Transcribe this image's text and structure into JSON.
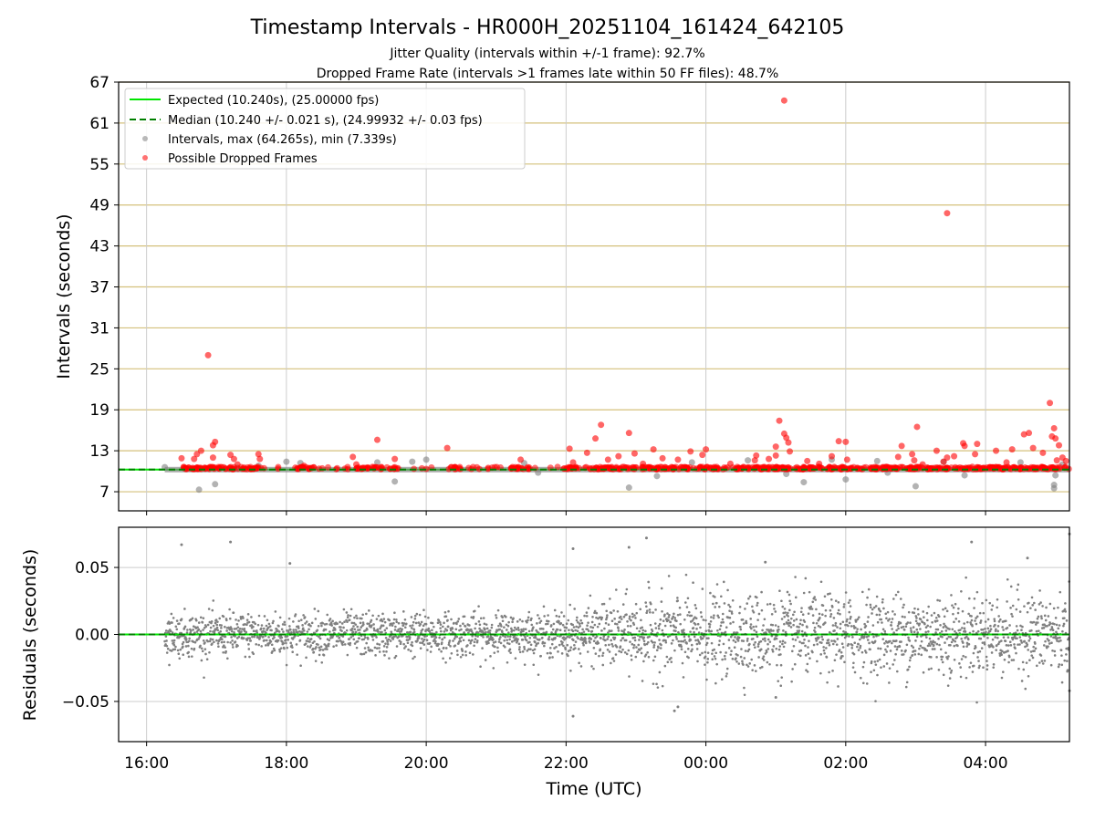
{
  "chart_data": {
    "title": "Timestamp Intervals - HR000H_20251104_161424_642105",
    "subtitle_lines": [
      "Jitter Quality (intervals within +/-1 frame): 92.7%",
      "Dropped Frame Rate (intervals >1 frames late within 50 FF files): 48.7%"
    ],
    "xlabel": "Time (UTC)",
    "x_ticks": [
      "16:00",
      "18:00",
      "20:00",
      "22:00",
      "00:00",
      "02:00",
      "04:00"
    ],
    "x_tick_hours": [
      16,
      18,
      20,
      22,
      24,
      26,
      28
    ],
    "x_range_hours": [
      15.6,
      29.2
    ],
    "data_start_hour": 16.26,
    "data_end_hour": 29.2,
    "colors": {
      "expected": "#00e600",
      "median": "#007f00",
      "intervals": "#808080",
      "dropped": "#ff0000",
      "ygrid": "#d4c07c",
      "xgrid": "#cccccc"
    },
    "top": {
      "type": "scatter",
      "ylabel": "Intervals (seconds)",
      "ylim": [
        4.2,
        67
      ],
      "y_ticks": [
        "7",
        "13",
        "19",
        "25",
        "31",
        "37",
        "43",
        "49",
        "55",
        "61",
        "67"
      ],
      "expected": 10.24,
      "median": 10.24,
      "legend": [
        "Expected (10.240s), (25.00000 fps)",
        "Median (10.240 +/- 0.021 s), (24.99932 +/- 0.03 fps)",
        "Intervals, max (64.265s), min (7.339s)",
        "Possible Dropped Frames"
      ],
      "interval_outliers": [
        {
          "t": 16.26,
          "y": 10.6
        },
        {
          "t": 16.55,
          "y": 10.4
        },
        {
          "t": 16.75,
          "y": 7.3
        },
        {
          "t": 16.98,
          "y": 8.1
        },
        {
          "t": 17.3,
          "y": 10.5
        },
        {
          "t": 17.6,
          "y": 10.8
        },
        {
          "t": 18.0,
          "y": 11.4
        },
        {
          "t": 18.2,
          "y": 11.2
        },
        {
          "t": 19.3,
          "y": 11.3
        },
        {
          "t": 19.55,
          "y": 8.5
        },
        {
          "t": 19.8,
          "y": 11.4
        },
        {
          "t": 20.0,
          "y": 11.7
        },
        {
          "t": 21.4,
          "y": 11.2
        },
        {
          "t": 21.6,
          "y": 9.8
        },
        {
          "t": 22.9,
          "y": 7.6
        },
        {
          "t": 23.3,
          "y": 9.3
        },
        {
          "t": 23.8,
          "y": 11.3
        },
        {
          "t": 24.6,
          "y": 11.6
        },
        {
          "t": 25.15,
          "y": 9.6
        },
        {
          "t": 25.4,
          "y": 8.4
        },
        {
          "t": 25.8,
          "y": 11.7
        },
        {
          "t": 26.0,
          "y": 8.8
        },
        {
          "t": 26.45,
          "y": 11.5
        },
        {
          "t": 26.6,
          "y": 9.8
        },
        {
          "t": 27.0,
          "y": 7.8
        },
        {
          "t": 27.4,
          "y": 11.4
        },
        {
          "t": 27.7,
          "y": 9.4
        },
        {
          "t": 28.5,
          "y": 11.3
        },
        {
          "t": 28.98,
          "y": 7.5
        },
        {
          "t": 28.98,
          "y": 8.0
        },
        {
          "t": 29.0,
          "y": 9.4
        },
        {
          "t": 29.1,
          "y": 11.0
        }
      ],
      "dropped_frames": [
        {
          "t": 16.5,
          "y": 11.9
        },
        {
          "t": 16.68,
          "y": 11.8
        },
        {
          "t": 16.72,
          "y": 12.5
        },
        {
          "t": 16.78,
          "y": 13.0
        },
        {
          "t": 16.88,
          "y": 27.0
        },
        {
          "t": 16.95,
          "y": 13.8
        },
        {
          "t": 16.98,
          "y": 14.3
        },
        {
          "t": 16.95,
          "y": 12.0
        },
        {
          "t": 17.2,
          "y": 12.4
        },
        {
          "t": 17.25,
          "y": 11.8
        },
        {
          "t": 17.3,
          "y": 11.0
        },
        {
          "t": 17.6,
          "y": 12.5
        },
        {
          "t": 17.62,
          "y": 11.8
        },
        {
          "t": 18.25,
          "y": 10.8
        },
        {
          "t": 18.95,
          "y": 12.1
        },
        {
          "t": 19.0,
          "y": 11.0
        },
        {
          "t": 19.3,
          "y": 14.6
        },
        {
          "t": 19.55,
          "y": 11.8
        },
        {
          "t": 20.3,
          "y": 13.4
        },
        {
          "t": 21.35,
          "y": 11.7
        },
        {
          "t": 22.05,
          "y": 13.3
        },
        {
          "t": 22.1,
          "y": 11.3
        },
        {
          "t": 22.3,
          "y": 12.7
        },
        {
          "t": 22.42,
          "y": 14.8
        },
        {
          "t": 22.5,
          "y": 16.8
        },
        {
          "t": 22.6,
          "y": 11.7
        },
        {
          "t": 22.75,
          "y": 12.2
        },
        {
          "t": 22.9,
          "y": 15.6
        },
        {
          "t": 22.98,
          "y": 12.6
        },
        {
          "t": 23.1,
          "y": 11.1
        },
        {
          "t": 23.25,
          "y": 13.2
        },
        {
          "t": 23.38,
          "y": 11.9
        },
        {
          "t": 23.6,
          "y": 11.7
        },
        {
          "t": 23.78,
          "y": 12.9
        },
        {
          "t": 23.95,
          "y": 12.4
        },
        {
          "t": 24.0,
          "y": 13.2
        },
        {
          "t": 24.35,
          "y": 11.1
        },
        {
          "t": 24.7,
          "y": 11.6
        },
        {
          "t": 24.72,
          "y": 12.3
        },
        {
          "t": 24.9,
          "y": 11.8
        },
        {
          "t": 25.0,
          "y": 12.3
        },
        {
          "t": 25.0,
          "y": 13.6
        },
        {
          "t": 25.05,
          "y": 17.4
        },
        {
          "t": 25.12,
          "y": 15.5
        },
        {
          "t": 25.15,
          "y": 14.9
        },
        {
          "t": 25.18,
          "y": 14.2
        },
        {
          "t": 25.2,
          "y": 12.9
        },
        {
          "t": 25.45,
          "y": 11.5
        },
        {
          "t": 25.62,
          "y": 11.1
        },
        {
          "t": 25.8,
          "y": 12.2
        },
        {
          "t": 25.9,
          "y": 14.4
        },
        {
          "t": 26.0,
          "y": 14.3
        },
        {
          "t": 26.02,
          "y": 11.7
        },
        {
          "t": 26.75,
          "y": 12.1
        },
        {
          "t": 26.8,
          "y": 13.7
        },
        {
          "t": 26.95,
          "y": 12.5
        },
        {
          "t": 26.98,
          "y": 11.6
        },
        {
          "t": 27.02,
          "y": 16.5
        },
        {
          "t": 27.1,
          "y": 11.0
        },
        {
          "t": 27.3,
          "y": 13.0
        },
        {
          "t": 27.4,
          "y": 11.4
        },
        {
          "t": 27.45,
          "y": 12.0
        },
        {
          "t": 27.45,
          "y": 47.8
        },
        {
          "t": 27.55,
          "y": 12.2
        },
        {
          "t": 27.68,
          "y": 14.1
        },
        {
          "t": 27.7,
          "y": 13.7
        },
        {
          "t": 27.85,
          "y": 12.5
        },
        {
          "t": 27.88,
          "y": 14.0
        },
        {
          "t": 28.15,
          "y": 13.0
        },
        {
          "t": 28.3,
          "y": 11.3
        },
        {
          "t": 28.38,
          "y": 13.2
        },
        {
          "t": 28.55,
          "y": 15.4
        },
        {
          "t": 28.62,
          "y": 15.6
        },
        {
          "t": 28.68,
          "y": 13.4
        },
        {
          "t": 28.82,
          "y": 12.7
        },
        {
          "t": 28.92,
          "y": 20.0
        },
        {
          "t": 28.95,
          "y": 15.1
        },
        {
          "t": 28.98,
          "y": 16.3
        },
        {
          "t": 29.0,
          "y": 14.8
        },
        {
          "t": 29.02,
          "y": 11.6
        },
        {
          "t": 29.05,
          "y": 13.8
        },
        {
          "t": 29.1,
          "y": 12.0
        },
        {
          "t": 29.15,
          "y": 11.5
        },
        {
          "t": 25.12,
          "y": 64.3
        }
      ]
    },
    "bottom": {
      "type": "scatter",
      "ylabel": "Residuals (seconds)",
      "ylim": [
        -0.08,
        0.08
      ],
      "y_ticks": [
        0.05,
        0.0,
        -0.05
      ],
      "y_tick_labels": [
        "0.05",
        "0.00",
        "−0.05"
      ],
      "zero_line": 0.0,
      "n_points": 3000,
      "std_early": 0.008,
      "std_late": 0.015,
      "notable_points": [
        {
          "t": 16.5,
          "y": 0.067
        },
        {
          "t": 17.2,
          "y": 0.069
        },
        {
          "t": 18.05,
          "y": 0.053
        },
        {
          "t": 22.1,
          "y": 0.064
        },
        {
          "t": 22.1,
          "y": -0.061
        },
        {
          "t": 22.9,
          "y": 0.065
        },
        {
          "t": 23.15,
          "y": 0.072
        },
        {
          "t": 23.6,
          "y": -0.054
        },
        {
          "t": 23.55,
          "y": -0.057
        },
        {
          "t": 24.85,
          "y": 0.054
        },
        {
          "t": 25.0,
          "y": -0.047
        },
        {
          "t": 27.8,
          "y": 0.069
        },
        {
          "t": 28.6,
          "y": 0.057
        },
        {
          "t": 29.2,
          "y": 0.075
        },
        {
          "t": 29.2,
          "y": -0.042
        }
      ]
    }
  }
}
